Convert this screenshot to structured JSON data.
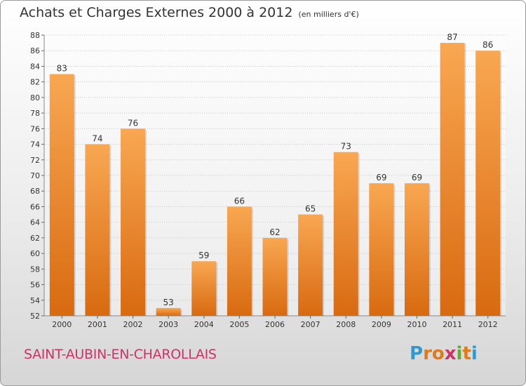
{
  "title": "Achats et Charges Externes 2000 à 2012",
  "unit": "(en milliers d'€)",
  "commune": "SAINT-AUBIN-EN-CHAROLLAIS",
  "logo": {
    "letters": [
      "P",
      "r",
      "o",
      "x",
      "i",
      "t",
      "i"
    ],
    "colors": [
      "#3399cc",
      "#e07b1a",
      "#e07b1a",
      "#cc3366",
      "#66aa33",
      "#e07b1a",
      "#3399cc"
    ]
  },
  "colors": {
    "bar_light": "#f9a752",
    "bar_dark": "#d86a10",
    "title": "#333333",
    "commune": "#cc3366"
  },
  "chart_data": {
    "type": "bar",
    "categories": [
      "2000",
      "2001",
      "2002",
      "2003",
      "2004",
      "2005",
      "2006",
      "2007",
      "2008",
      "2009",
      "2010",
      "2011",
      "2012"
    ],
    "values": [
      83,
      74,
      76,
      53,
      59,
      66,
      62,
      65,
      73,
      69,
      69,
      87,
      86
    ],
    "ylim": [
      52,
      88
    ],
    "yticks": [
      52,
      54,
      56,
      58,
      60,
      62,
      64,
      66,
      68,
      70,
      72,
      74,
      76,
      78,
      80,
      82,
      84,
      86,
      88
    ],
    "grid": true,
    "xlabel": "",
    "ylabel": ""
  }
}
